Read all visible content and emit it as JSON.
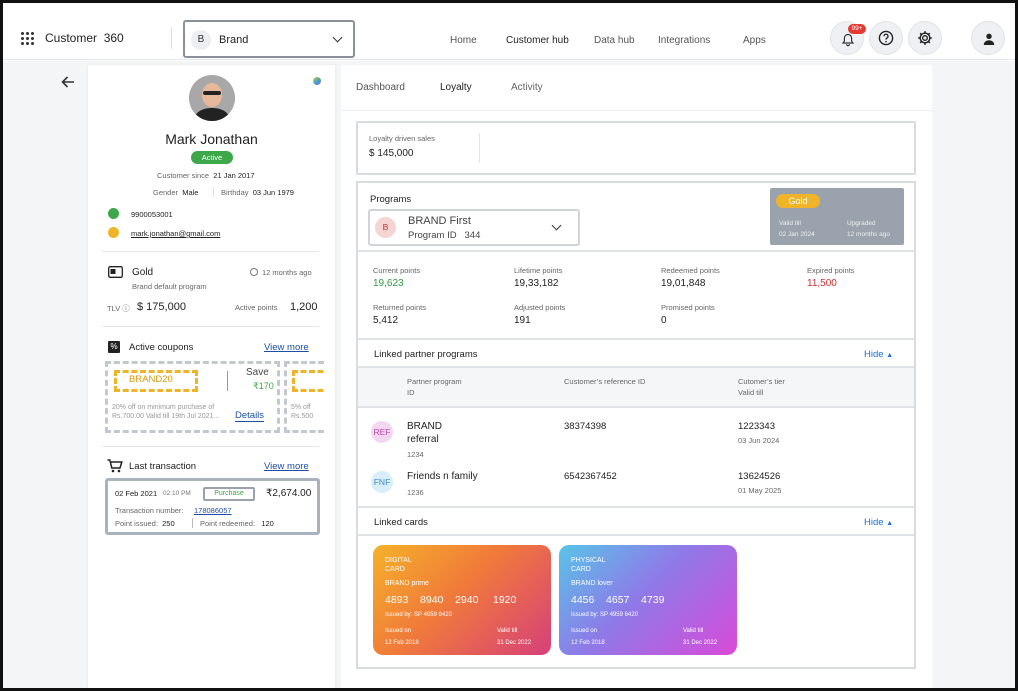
{
  "header": {
    "app_name": "Customer",
    "app_num": "360",
    "brand_initial": "B",
    "brand_label": "Brand",
    "nav": [
      "Home",
      "Customer hub",
      "Data hub",
      "Integrations",
      "Apps"
    ],
    "notif_badge": "99+"
  },
  "profile": {
    "name": "Mark Jonathan",
    "status": "Active",
    "since_label": "Customer since",
    "since": "21 Jan 2017",
    "gender_label": "Gender",
    "gender": "Male",
    "birthday_label": "Birthday",
    "birthday": "03 Jun 1979",
    "phone": "9900053001",
    "email": "mark.jonathan@gmail.com"
  },
  "tier": {
    "name": "Gold",
    "program": "Brand default program",
    "age": "12 months ago",
    "tlv_label": "TLV",
    "tlv": "$ 175,000",
    "active_points_label": "Active points",
    "active_points": "1,200"
  },
  "coupons": {
    "title": "Active coupons",
    "view_more": "View more",
    "code": "BRAND20",
    "save_label": "Save",
    "save_value": "₹170",
    "desc1": "20% off on minimum purchase of",
    "desc2": "Rs.700.00   Valid till 19th  Jul 2021...",
    "details": "Details",
    "peek1": "5% off",
    "peek2": "Rs.500"
  },
  "last_txn": {
    "title": "Last transaction",
    "view_more": "View more",
    "date": "02 Feb 2021",
    "time": "02:10 PM",
    "type": "Purchase",
    "amount": "₹2,674.00",
    "txn_label": "Transaction number:",
    "txn_no": "178086057",
    "issued_label": "Point issued:",
    "issued": "250",
    "redeemed_label": "Point redeemed:",
    "redeemed": "120"
  },
  "tabs": [
    "Dashboard",
    "Loyalty",
    "Activity"
  ],
  "sales": {
    "label": "Loyalty driven sales",
    "value": "$ 145,000"
  },
  "programs": {
    "title": "Programs",
    "initial": "B",
    "name": "BRAND First",
    "id_label": "Program ID",
    "id": "344",
    "tier": "Gold",
    "valid_label": "Valid till",
    "valid": "02 Jan 2024",
    "upgraded_label": "Upgraded",
    "upgraded": "12 months ago"
  },
  "points": [
    {
      "label": "Current points",
      "value": "19,623",
      "color": "#2e9e3e"
    },
    {
      "label": "Lifetime points",
      "value": "19,33,182",
      "color": "#222222"
    },
    {
      "label": "Redeemed  points",
      "value": "19,01,848",
      "color": "#222222"
    },
    {
      "label": "Expired points",
      "value": "11,500",
      "color": "#d32f2f"
    },
    {
      "label": "Returned points",
      "value": "5,412",
      "color": "#222222"
    },
    {
      "label": "Adjusted points",
      "value": "191",
      "color": "#222222"
    },
    {
      "label": "Promised points",
      "value": "0",
      "color": "#222222"
    }
  ],
  "partners": {
    "title": "Linked partner programs",
    "hide": "Hide",
    "col1a": "Partner  program",
    "col1b": "ID",
    "col2": "Customer’s reference  ID",
    "col3a": "Cutomer’s tier",
    "col3b": "Valid till",
    "rows": [
      {
        "abbr": "REF",
        "name1": "BRAND",
        "name2": "referral",
        "id": "1234",
        "ref": "38374398",
        "tier": "1223343",
        "valid": "03 Jun 2024",
        "bg": "#f3d6f0",
        "fg": "#b84aa8"
      },
      {
        "abbr": "FNF",
        "name1": "Friends  n  family",
        "name2": "",
        "id": "1236",
        "ref": "6542367452",
        "tier": "13624526",
        "valid": "01 May 2025",
        "bg": "#d8eef8",
        "fg": "#3d8ab8"
      }
    ]
  },
  "cards": {
    "title": "Linked cards",
    "hide": "Hide",
    "list": [
      {
        "type1": "DIGITAL",
        "type2": "CARD",
        "brand": "BRAND  prime",
        "number": "4893    8940    2940     1920",
        "issued_by": "Issued by: SP 4959 6420",
        "issued_label": "Issued on",
        "issued": "12 Feb 2018",
        "valid_label": "Valid till",
        "valid": "31 Dec 2022"
      },
      {
        "type1": "PHYSICAL",
        "type2": "CARD",
        "brand": "BRAND  lover",
        "number": "4456    4657    4739",
        "issued_by": "Issued by: SP 4959 6420",
        "issued_label": "Issued on",
        "issued": "12 Feb 2018",
        "valid_label": "Valid till",
        "valid": "31 Dec 2022"
      }
    ]
  }
}
